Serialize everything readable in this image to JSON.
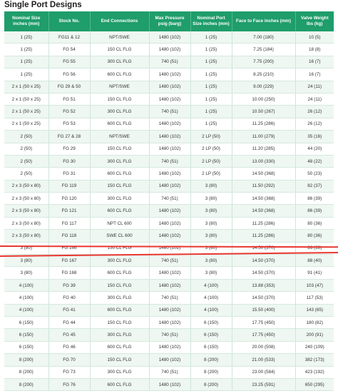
{
  "title": "Single Port Designs",
  "columns": [
    "Nominal Size inches (mm)",
    "Stock No.",
    "End Connections",
    "Max Pressure psig (barg)",
    "Nominal Port Size inches (mm)",
    "Face to Face inches (mm)",
    "Valve Weight lbs (kg)"
  ],
  "rows": [
    [
      "1 (25)",
      "FG11 & 12",
      "NPT/SWE",
      "1480 (102)",
      "1 (25)",
      "7.00 (180)",
      "10 (5)"
    ],
    [
      "1 (25)",
      "FG 54",
      "150 CL FLG",
      "1480 (102)",
      "1 (25)",
      "7.25 (184)",
      "18 (8)"
    ],
    [
      "1 (25)",
      "FG 55",
      "300 CL FLG",
      "740 (51)",
      "1 (25)",
      "7.75 (200)",
      "16 (7)"
    ],
    [
      "1 (25)",
      "FG 56",
      "600 CL FLG",
      "1480 (102)",
      "1 (25)",
      "8.25 (210)",
      "16 (7)"
    ],
    [
      "2 x 1 (50 x 25)",
      "FG 29 & 50",
      "NPT/SWE",
      "1480 (102)",
      "1 (25)",
      "9.00 (229)",
      "24 (11)"
    ],
    [
      "2 x 1 (50 x 25)",
      "FG 51",
      "150 CL FLG",
      "1480 (102)",
      "1 (25)",
      "10.00 (250)",
      "24 (11)"
    ],
    [
      "2 x 1 (50 x 25)",
      "FG 52",
      "300 CL FLG",
      "740 (51)",
      "1 (25)",
      "10.50 (267)",
      "26 (12)"
    ],
    [
      "2 x 1 (50 x 25)",
      "FG 53",
      "600 CL FLG",
      "1480 (102)",
      "1 (25)",
      "11.25 (286)",
      "26 (12)"
    ],
    [
      "2 (50)",
      "FG 27 & 28",
      "NPT/SWE",
      "1480 (102)",
      "2 LP (50)",
      "11.00 (279)",
      "35 (16)"
    ],
    [
      "2 (50)",
      "FG 29",
      "150 CL FLG",
      "1480 (102)",
      "2 LP (50)",
      "11.20 (285)",
      "44 (20)"
    ],
    [
      "2 (50)",
      "FG 30",
      "300 CL FLG",
      "740 (51)",
      "2 LP (50)",
      "13.00 (330)",
      "48 (22)"
    ],
    [
      "2 (50)",
      "FG 31",
      "600 CL FLG",
      "1480 (102)",
      "2 LP (50)",
      "14.50 (368)",
      "50 (23)"
    ],
    [
      "2 x 3 (50 x 80)",
      "FG 119",
      "150 CL FLG",
      "1480 (102)",
      "3 (80)",
      "11.50 (292)",
      "82 (37)"
    ],
    [
      "2 x 3 (50 x 80)",
      "FG 120",
      "300 CL FLG",
      "740 (51)",
      "3 (80)",
      "14.50 (368)",
      "86 (39)"
    ],
    [
      "2 x 3 (50 x 80)",
      "FG 121",
      "600 CL FLG",
      "1480 (102)",
      "3 (80)",
      "14.50 (368)",
      "86 (39)"
    ],
    [
      "2 x 3 (50 x 80)",
      "FG 117",
      "NPT CL 600",
      "1480 (102)",
      "3 (80)",
      "11.25 (286)",
      "80 (36)"
    ],
    [
      "2 x 3 (50 x 80)",
      "FG 118",
      "SWE CL 600",
      "1480 (102)",
      "3 (80)",
      "11.25 (286)",
      "80 (36)"
    ],
    [
      "3 (80)",
      "FG 166",
      "150 CL FLG",
      "1480 (102)",
      "3 (80)",
      "14.50 (370)",
      "86 (39)"
    ],
    [
      "3 (80)",
      "FG 167",
      "300 CL FLG",
      "740 (51)",
      "3 (80)",
      "14.50 (370)",
      "88 (40)"
    ],
    [
      "3 (80)",
      "FG 168",
      "600 CL FLG",
      "1480 (102)",
      "3 (80)",
      "14.50 (370)",
      "91 (41)"
    ],
    [
      "4 (100)",
      "FG 39",
      "150 CL FLG",
      "1480 (102)",
      "4 (100)",
      "13.88 (353)",
      "103 (47)"
    ],
    [
      "4 (100)",
      "FG 40",
      "300 CL FLG",
      "740 (51)",
      "4 (100)",
      "14.50 (370)",
      "117 (53)"
    ],
    [
      "4 (100)",
      "FG 41",
      "600 CL FLG",
      "1480 (102)",
      "4 (100)",
      "15.50 (400)",
      "143 (65)"
    ],
    [
      "6 (150)",
      "FG 44",
      "150 CL FLG",
      "1480 (102)",
      "6 (150)",
      "17.75 (450)",
      "180 (82)"
    ],
    [
      "6 (150)",
      "FG 45",
      "300 CL FLG",
      "740 (51)",
      "6 (150)",
      "17.75 (450)",
      "200 (91)"
    ],
    [
      "6 (150)",
      "FG 46",
      "600 CL FLG",
      "1480 (102)",
      "6 (150)",
      "20.00 (508)",
      "240 (109)"
    ],
    [
      "8 (200)",
      "FG 70",
      "150 CL FLG",
      "1480 (102)",
      "8 (200)",
      "21.00 (533)",
      "382 (173)"
    ],
    [
      "8 (200)",
      "FG 73",
      "300 CL FLG",
      "740 (51)",
      "8 (200)",
      "23.00 (584)",
      "423 (192)"
    ],
    [
      "8 (200)",
      "FG 76",
      "600 CL FLG",
      "1480 (102)",
      "8 (200)",
      "23.25 (591)",
      "650 (295)"
    ]
  ],
  "colors": {
    "header_bg": "#1f9d6b",
    "stripe": "#eef7f1",
    "annotation": "#e8362f"
  }
}
